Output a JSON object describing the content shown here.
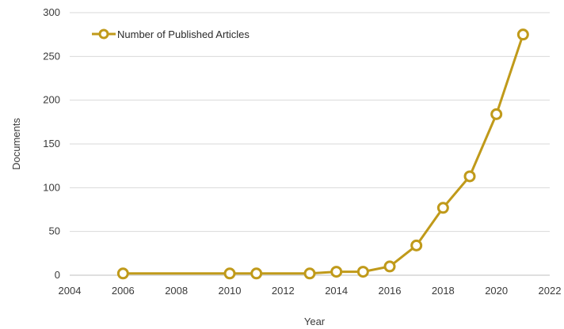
{
  "chart_data": {
    "type": "line",
    "title": "",
    "xlabel": "Year",
    "ylabel": "Documents",
    "xlim": [
      2004,
      2022
    ],
    "ylim": [
      0,
      300
    ],
    "x_ticks": [
      2004,
      2006,
      2008,
      2010,
      2012,
      2014,
      2016,
      2018,
      2020,
      2022
    ],
    "y_ticks": [
      0,
      50,
      100,
      150,
      200,
      250,
      300
    ],
    "grid": true,
    "legend_position": "top-left",
    "color": "#C09A1A",
    "series": [
      {
        "name": "Number of Published Articles",
        "x": [
          2006,
          2010,
          2011,
          2013,
          2014,
          2015,
          2016,
          2017,
          2018,
          2019,
          2020,
          2021
        ],
        "y": [
          2,
          2,
          2,
          2,
          4,
          4,
          10,
          34,
          77,
          113,
          184,
          275
        ]
      }
    ]
  }
}
